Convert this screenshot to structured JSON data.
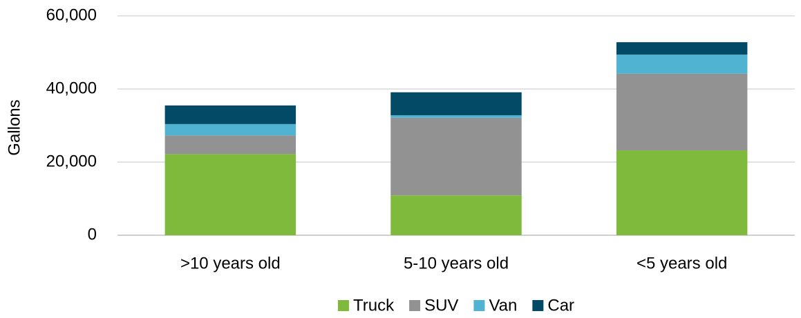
{
  "chart_data": {
    "type": "stacked_bar",
    "ylabel": "Gallons",
    "categories": [
      ">10 years old",
      "5-10 years old",
      "<5 years old"
    ],
    "series": [
      {
        "name": "Truck",
        "color": "#7fba3c",
        "values": [
          22200,
          10900,
          23200
        ]
      },
      {
        "name": "SUV",
        "color": "#929292",
        "values": [
          5100,
          21200,
          21000
        ]
      },
      {
        "name": "Van",
        "color": "#4fb3d1",
        "values": [
          3100,
          700,
          5200
        ]
      },
      {
        "name": "Car",
        "color": "#034a66",
        "values": [
          5100,
          6300,
          3400
        ]
      }
    ],
    "ylim": [
      0,
      60000
    ],
    "yticks": [
      0,
      {
        "value": 20000,
        "label": "20,000"
      },
      {
        "value": 40000,
        "label": "40,000"
      },
      {
        "value": 60000,
        "label": "60,000"
      }
    ],
    "grid": true,
    "legend": "bottom"
  }
}
